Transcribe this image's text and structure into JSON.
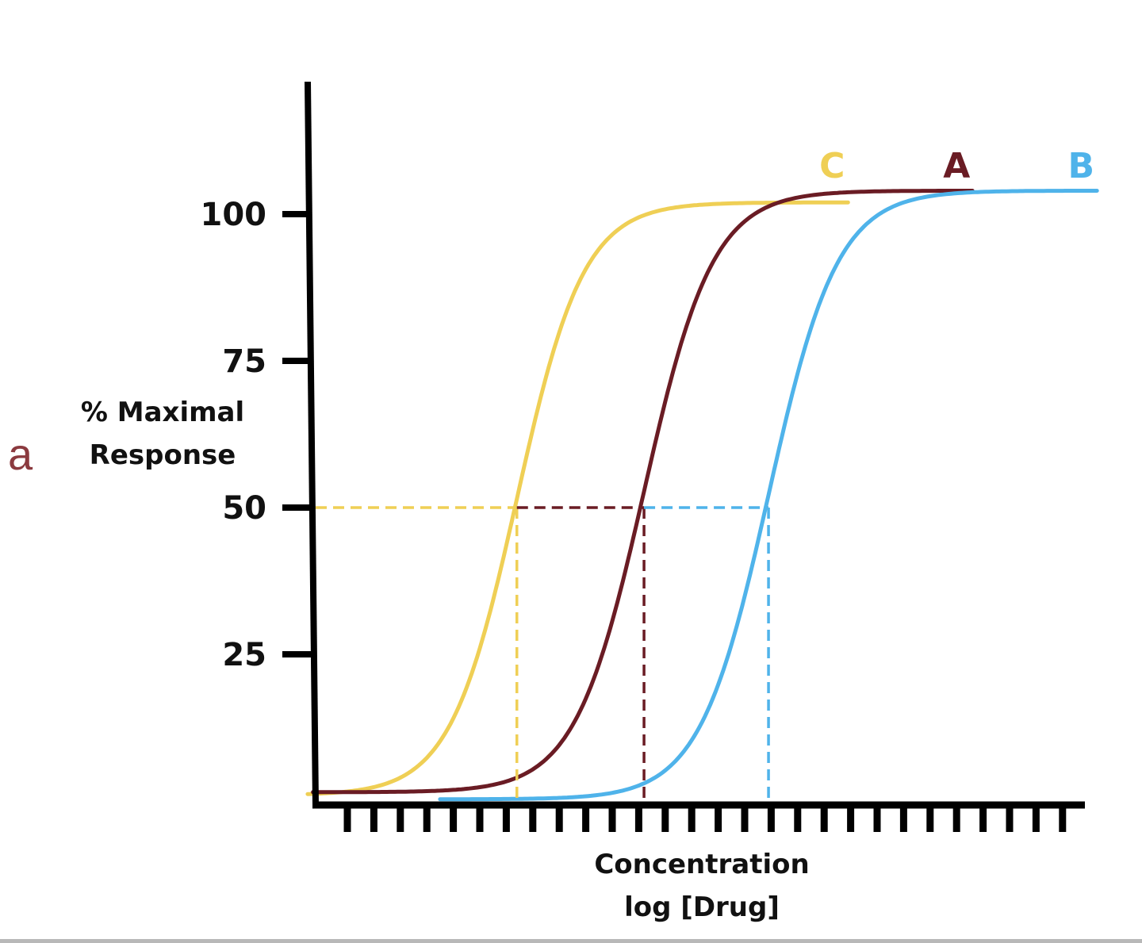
{
  "panel_letter": "a",
  "chart_data": {
    "type": "line",
    "title": "",
    "xlabel": "Concentration log [Drug]",
    "xlabel_lines": [
      "Concentration",
      "log [Drug]"
    ],
    "ylabel_lines": [
      "% Maximal",
      "Response"
    ],
    "ylabel": "% Maximal Response",
    "x_scale": "log",
    "x_tick_count": 28,
    "x_tick_labels": [],
    "yticks": [
      25,
      50,
      75,
      100
    ],
    "ylim": [
      0,
      120
    ],
    "grid": false,
    "legend": "labels at curve ends, top-right",
    "reference_level": 50,
    "series": [
      {
        "name": "C",
        "color": "#efcf55",
        "ec50": 6.4,
        "slope": 1.26,
        "max": 102,
        "min": 1,
        "x_range": [
          -1.5,
          18.9
        ]
      },
      {
        "name": "A",
        "color": "#6a1c24",
        "ec50": 11.2,
        "slope": 1.3,
        "max": 104,
        "min": 1.5,
        "x_range": [
          -1.3,
          23.6
        ]
      },
      {
        "name": "B",
        "color": "#4fb3ea",
        "ec50": 15.9,
        "slope": 1.3,
        "max": 104,
        "min": 0.3,
        "x_range": [
          3.5,
          28.3
        ]
      }
    ]
  }
}
